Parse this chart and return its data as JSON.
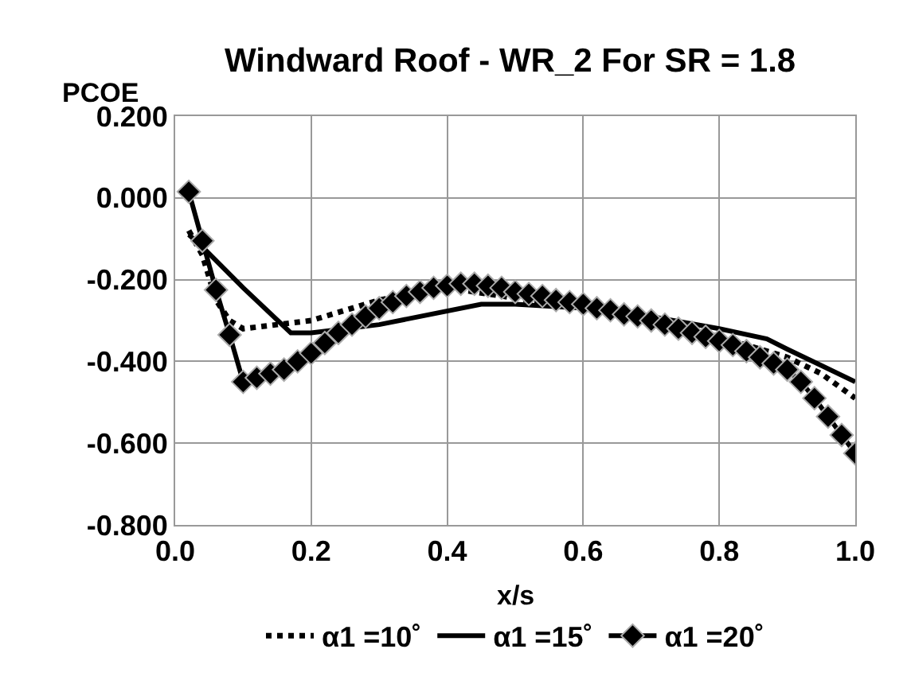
{
  "chart_data": {
    "type": "line",
    "title": "Windward Roof - WR_2 For SR = 1.8",
    "xlabel": "x/s",
    "ylabel": "PCOE",
    "xlim": [
      0,
      1
    ],
    "xticks": [
      {
        "value": 0,
        "label": "0.0"
      },
      {
        "value": 0.2,
        "label": "0.2"
      },
      {
        "value": 0.4,
        "label": "0.4"
      },
      {
        "value": 0.6,
        "label": "0.6"
      },
      {
        "value": 0.8,
        "label": "0.8"
      },
      {
        "value": 1,
        "label": "1.0"
      }
    ],
    "ylim": [
      -0.8,
      0.2
    ],
    "yticks": [
      {
        "value": -0.8,
        "label": "-0.800"
      },
      {
        "value": -0.6,
        "label": "-0.600"
      },
      {
        "value": -0.4,
        "label": "-0.400"
      },
      {
        "value": -0.2,
        "label": "-0.200"
      },
      {
        "value": 0,
        "label": "0.000"
      },
      {
        "value": 0.2,
        "label": "0.200"
      }
    ],
    "grid": true,
    "legend": "bottom",
    "series": [
      {
        "name": "α1 =10˚",
        "color": "#000000",
        "line_style": "dotted",
        "marker": "none",
        "x": [
          0.02,
          0.04,
          0.06,
          0.08,
          0.1,
          0.15,
          0.2,
          0.3,
          0.4,
          0.5,
          0.6,
          0.7,
          0.8,
          0.9,
          0.95,
          1.0
        ],
        "values": [
          -0.08,
          -0.14,
          -0.25,
          -0.3,
          -0.32,
          -0.31,
          -0.3,
          -0.25,
          -0.22,
          -0.245,
          -0.27,
          -0.3,
          -0.34,
          -0.39,
          -0.43,
          -0.49
        ]
      },
      {
        "name": "α1 =15˚",
        "color": "#000000",
        "line_style": "solid",
        "marker": "none",
        "x": [
          0.02,
          0.04,
          0.1,
          0.17,
          0.2,
          0.3,
          0.45,
          0.5,
          0.6,
          0.7,
          0.8,
          0.87,
          0.9,
          1.0
        ],
        "values": [
          -0.09,
          -0.12,
          -0.22,
          -0.33,
          -0.33,
          -0.31,
          -0.26,
          -0.26,
          -0.27,
          -0.29,
          -0.32,
          -0.345,
          -0.37,
          -0.45
        ]
      },
      {
        "name": "α1 =20˚",
        "color": "#000000",
        "line_style": "solid",
        "marker": "diamond",
        "x": [
          0.02,
          0.04,
          0.06,
          0.08,
          0.1,
          0.12,
          0.14,
          0.16,
          0.18,
          0.2,
          0.22,
          0.24,
          0.26,
          0.28,
          0.3,
          0.32,
          0.34,
          0.36,
          0.38,
          0.4,
          0.42,
          0.44,
          0.46,
          0.48,
          0.5,
          0.52,
          0.54,
          0.56,
          0.58,
          0.6,
          0.62,
          0.64,
          0.66,
          0.68,
          0.7,
          0.72,
          0.74,
          0.76,
          0.78,
          0.8,
          0.82,
          0.84,
          0.86,
          0.88,
          0.9,
          0.92,
          0.94,
          0.96,
          0.98,
          1.0
        ],
        "values": [
          0.015,
          -0.105,
          -0.225,
          -0.335,
          -0.45,
          -0.44,
          -0.43,
          -0.42,
          -0.4,
          -0.38,
          -0.355,
          -0.33,
          -0.31,
          -0.29,
          -0.27,
          -0.255,
          -0.24,
          -0.23,
          -0.22,
          -0.215,
          -0.21,
          -0.21,
          -0.215,
          -0.22,
          -0.23,
          -0.235,
          -0.24,
          -0.25,
          -0.255,
          -0.26,
          -0.27,
          -0.275,
          -0.285,
          -0.29,
          -0.3,
          -0.31,
          -0.32,
          -0.33,
          -0.34,
          -0.35,
          -0.36,
          -0.375,
          -0.39,
          -0.405,
          -0.42,
          -0.45,
          -0.49,
          -0.535,
          -0.58,
          -0.625
        ]
      }
    ]
  }
}
